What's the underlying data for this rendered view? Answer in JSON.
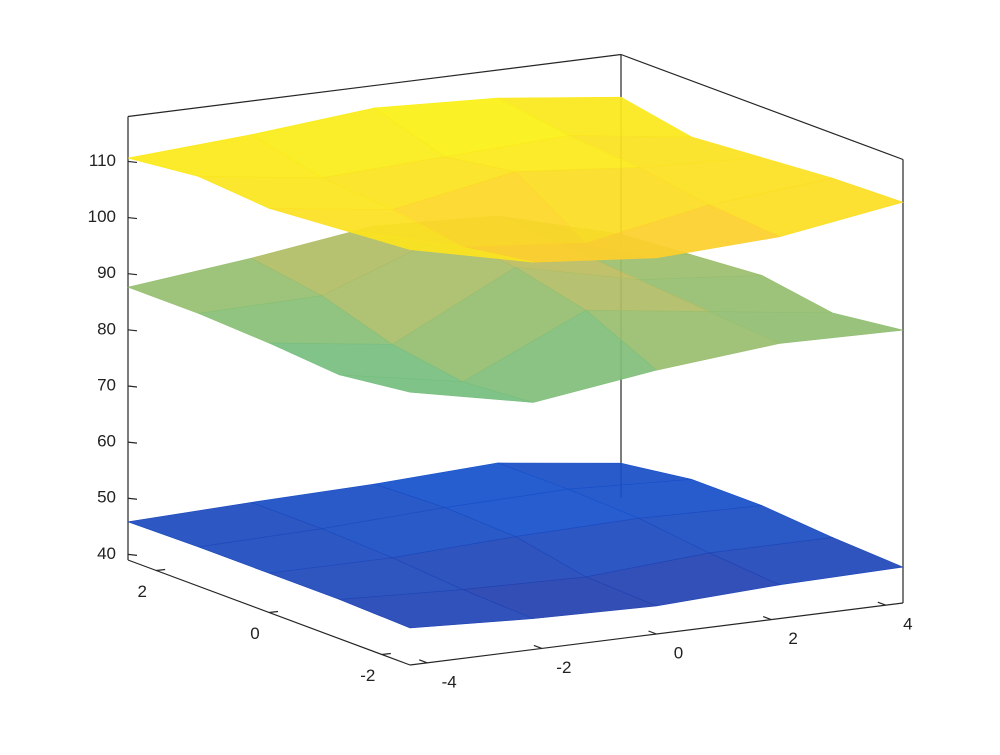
{
  "chart_data": {
    "type": "surface3d",
    "xlim": [
      -4.3,
      4.3
    ],
    "xticks": [
      -4,
      -2,
      0,
      2,
      4
    ],
    "ylim": [
      -2.5,
      2.5
    ],
    "yticks": [
      -2,
      0,
      2
    ],
    "zlim": [
      39,
      118
    ],
    "zticks": [
      40,
      50,
      60,
      70,
      80,
      90,
      100,
      110
    ],
    "x": [
      -4.3,
      -2.15,
      0,
      2.15,
      4.3
    ],
    "y": [
      -2.5,
      -1.25,
      0,
      1.25,
      2.5
    ],
    "colormap": [
      "#352a87",
      "#0f5cdd",
      "#1481d6",
      "#06a4ca",
      "#2eb7a4",
      "#87bf77",
      "#d1bb59",
      "#fec832",
      "#f9fb0e"
    ],
    "surfaces": [
      {
        "z": [
          [
            45.6,
            44.5,
            44,
            45,
            45.4
          ],
          [
            46,
            45,
            44.5,
            46,
            46
          ],
          [
            46,
            46,
            47,
            47.5,
            47
          ],
          [
            46,
            46.5,
            47.5,
            48,
            47
          ],
          [
            45.8,
            46.5,
            47,
            48,
            45.2
          ]
        ]
      },
      {
        "z": [
          [
            87.6,
            83,
            86,
            88,
            87.6
          ],
          [
            86,
            82,
            92,
            89,
            86
          ],
          [
            87,
            84,
            95,
            90,
            88
          ],
          [
            87.6,
            88,
            96,
            91,
            87
          ],
          [
            87.6,
            90,
            93,
            92,
            86
          ]
        ]
      },
      {
        "z": [
          [
            113,
            108,
            106,
            107,
            110.4
          ],
          [
            112,
            106,
            104,
            108,
            110
          ],
          [
            111,
            108,
            112,
            110,
            109
          ],
          [
            112,
            109,
            110,
            111,
            108
          ],
          [
            110.6,
            112,
            114,
            113,
            110.4
          ]
        ]
      }
    ]
  }
}
